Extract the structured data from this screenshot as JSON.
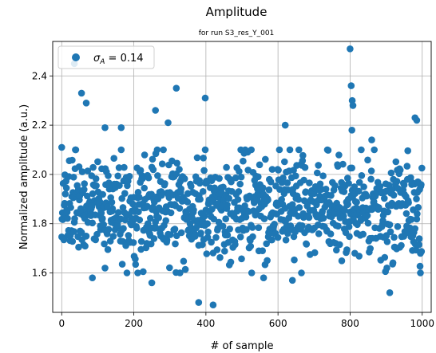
{
  "chart_data": {
    "type": "scatter",
    "title": "Amplitude",
    "subtitle": "for run S3_res_Y_001",
    "xlabel": "# of sample",
    "ylabel": "Normalized amplitude (a.u.)",
    "xlim": [
      -25,
      1025
    ],
    "ylim": [
      1.44,
      2.54
    ],
    "xticks": [
      0,
      200,
      400,
      600,
      800,
      1000
    ],
    "yticks": [
      1.6,
      1.8,
      2.0,
      2.2,
      2.4
    ],
    "ytick_labels": [
      "1.6",
      "1.8",
      "2.0",
      "2.2",
      "2.4"
    ],
    "grid": true,
    "legend": {
      "placement": "top-left",
      "label": "σ_A = 0.14",
      "sigma_symbol": "σ",
      "sigma_subscript": "A",
      "sigma_rest": " = 0.14"
    },
    "marker_color": "#1f77b4",
    "series": [
      {
        "n_points": 1000,
        "mean": 1.86,
        "sigma": 0.14,
        "notable_points": [
          {
            "x": 0,
            "y": 2.11
          },
          {
            "x": 35,
            "y": 2.45
          },
          {
            "x": 55,
            "y": 2.33
          },
          {
            "x": 68,
            "y": 2.29
          },
          {
            "x": 120,
            "y": 2.19
          },
          {
            "x": 165,
            "y": 2.19
          },
          {
            "x": 260,
            "y": 2.26
          },
          {
            "x": 295,
            "y": 2.21
          },
          {
            "x": 318,
            "y": 2.35
          },
          {
            "x": 398,
            "y": 2.31
          },
          {
            "x": 620,
            "y": 2.2
          },
          {
            "x": 800,
            "y": 2.51
          },
          {
            "x": 803,
            "y": 2.36
          },
          {
            "x": 806,
            "y": 2.3
          },
          {
            "x": 808,
            "y": 2.28
          },
          {
            "x": 805,
            "y": 2.18
          },
          {
            "x": 860,
            "y": 2.14
          },
          {
            "x": 980,
            "y": 2.23
          },
          {
            "x": 985,
            "y": 2.22
          },
          {
            "x": 85,
            "y": 1.58
          },
          {
            "x": 120,
            "y": 1.62
          },
          {
            "x": 250,
            "y": 1.56
          },
          {
            "x": 380,
            "y": 1.48
          },
          {
            "x": 420,
            "y": 1.47
          },
          {
            "x": 560,
            "y": 1.58
          },
          {
            "x": 640,
            "y": 1.57
          },
          {
            "x": 910,
            "y": 1.52
          },
          {
            "x": 995,
            "y": 1.6
          }
        ]
      }
    ]
  }
}
